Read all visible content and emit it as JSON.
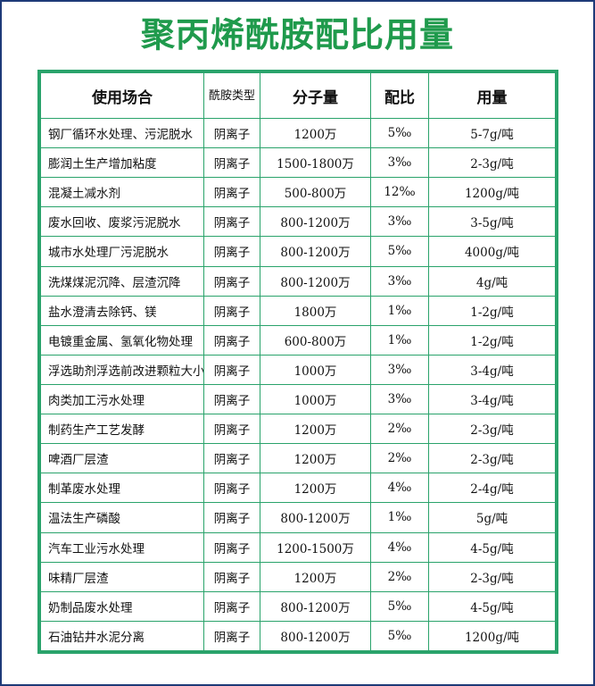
{
  "title": "聚丙烯酰胺配比用量",
  "headers": {
    "usage": "使用场合",
    "type": "酰胺类型",
    "mw": "分子量",
    "ratio": "配比",
    "dosage": "用量"
  },
  "rows": [
    {
      "usage": "钢厂循环水处理、污泥脱水",
      "type": "阴离子",
      "mw": "1200万",
      "ratio": "5‰",
      "dosage": "5-7g/吨"
    },
    {
      "usage": "膨润土生产增加粘度",
      "type": "阴离子",
      "mw": "1500-1800万",
      "ratio": "3‰",
      "dosage": "2-3g/吨"
    },
    {
      "usage": "混凝土减水剂",
      "type": "阴离子",
      "mw": "500-800万",
      "ratio": "12‰",
      "dosage": "1200g/吨"
    },
    {
      "usage": "废水回收、废浆污泥脱水",
      "type": "阴离子",
      "mw": "800-1200万",
      "ratio": "3‰",
      "dosage": "3-5g/吨"
    },
    {
      "usage": "城市水处理厂污泥脱水",
      "type": "阴离子",
      "mw": "800-1200万",
      "ratio": "5‰",
      "dosage": "4000g/吨"
    },
    {
      "usage": "洗煤煤泥沉降、层渣沉降",
      "type": "阴离子",
      "mw": "800-1200万",
      "ratio": "3‰",
      "dosage": "4g/吨"
    },
    {
      "usage": "盐水澄清去除钙、镁",
      "type": "阴离子",
      "mw": "1800万",
      "ratio": "1‰",
      "dosage": "1-2g/吨"
    },
    {
      "usage": "电镀重金属、氢氧化物处理",
      "type": "阴离子",
      "mw": "600-800万",
      "ratio": "1‰",
      "dosage": "1-2g/吨"
    },
    {
      "usage": "浮选助剂浮选前改进颗粒大小",
      "type": "阴离子",
      "mw": "1000万",
      "ratio": "3‰",
      "dosage": "3-4g/吨"
    },
    {
      "usage": "肉类加工污水处理",
      "type": "阴离子",
      "mw": "1000万",
      "ratio": "3‰",
      "dosage": "3-4g/吨"
    },
    {
      "usage": "制药生产工艺发酵",
      "type": "阴离子",
      "mw": "1200万",
      "ratio": "2‰",
      "dosage": "2-3g/吨"
    },
    {
      "usage": "啤酒厂层渣",
      "type": "阴离子",
      "mw": "1200万",
      "ratio": "2‰",
      "dosage": "2-3g/吨"
    },
    {
      "usage": "制革废水处理",
      "type": "阴离子",
      "mw": "1200万",
      "ratio": "4‰",
      "dosage": "2-4g/吨"
    },
    {
      "usage": "温法生产磷酸",
      "type": "阴离子",
      "mw": "800-1200万",
      "ratio": "1‰",
      "dosage": "5g/吨"
    },
    {
      "usage": "汽车工业污水处理",
      "type": "阴离子",
      "mw": "1200-1500万",
      "ratio": "4‰",
      "dosage": "4-5g/吨"
    },
    {
      "usage": "味精厂层渣",
      "type": "阴离子",
      "mw": "1200万",
      "ratio": "2‰",
      "dosage": "2-3g/吨"
    },
    {
      "usage": "奶制品废水处理",
      "type": "阴离子",
      "mw": "800-1200万",
      "ratio": "5‰",
      "dosage": "4-5g/吨"
    },
    {
      "usage": "石油钻井水泥分离",
      "type": "阴离子",
      "mw": "800-1200万",
      "ratio": "5‰",
      "dosage": "1200g/吨"
    }
  ],
  "colors": {
    "title": "#1f9a4c",
    "grid": "#2aa36b",
    "frame": "#1e3a78"
  }
}
